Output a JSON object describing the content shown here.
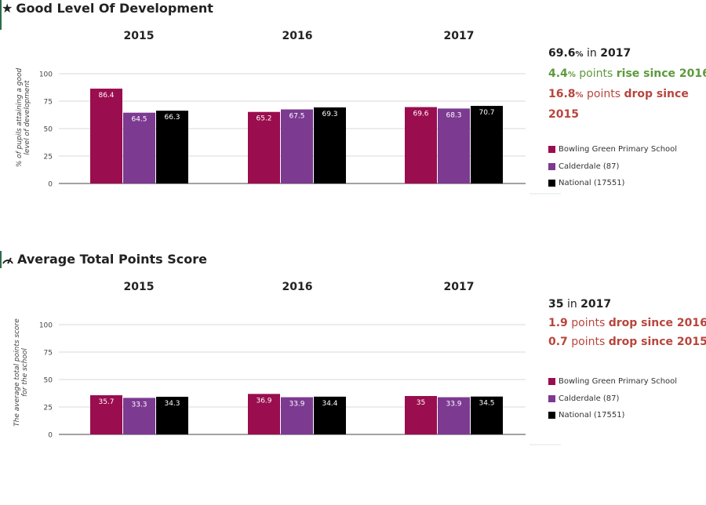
{
  "sections": [
    {
      "title": "Good Level Of Development",
      "icon": "star-icon",
      "chart_data": {
        "type": "bar",
        "categories": [
          "2015",
          "2016",
          "2017"
        ],
        "series": [
          {
            "name": "Bowling Green Primary School",
            "color": "#9a0d4e",
            "values": [
              86.4,
              65.2,
              69.6
            ]
          },
          {
            "name": "Calderdale (87)",
            "color": "#7c3a91",
            "values": [
              64.5,
              67.5,
              68.3
            ]
          },
          {
            "name": "National (17551)",
            "color": "#000000",
            "values": [
              66.3,
              69.3,
              70.7
            ]
          }
        ],
        "ylabel": "% of pupils attaining a good level of development",
        "ylim": [
          0,
          100
        ],
        "yticks": [
          0,
          25,
          50,
          75,
          100
        ],
        "legend_position": "right"
      },
      "summary": {
        "line1": {
          "value": "69.6",
          "unit": "%",
          "text": "in",
          "year": "2017"
        },
        "line2": {
          "value": "4.4",
          "unit": "%",
          "text": "points",
          "bold": "rise since 2016"
        },
        "line3": {
          "value": "16.8",
          "unit": "%",
          "text": "points",
          "bold": "drop since 2015"
        }
      }
    },
    {
      "title": "Average Total Points Score",
      "icon": "gauge-icon",
      "chart_data": {
        "type": "bar",
        "categories": [
          "2015",
          "2016",
          "2017"
        ],
        "series": [
          {
            "name": "Bowling Green Primary School",
            "color": "#9a0d4e",
            "values": [
              35.7,
              36.9,
              35
            ]
          },
          {
            "name": "Calderdale (87)",
            "color": "#7c3a91",
            "values": [
              33.3,
              33.9,
              33.9
            ]
          },
          {
            "name": "National (17551)",
            "color": "#000000",
            "values": [
              34.3,
              34.4,
              34.5
            ]
          }
        ],
        "ylabel": "The average total points score for the school",
        "ylim": [
          0,
          100
        ],
        "yticks": [
          0,
          25,
          50,
          75,
          100
        ],
        "legend_position": "right"
      },
      "summary": {
        "line1": {
          "value": "35",
          "unit": "",
          "text": "in",
          "year": "2017"
        },
        "line2": {
          "value": "1.9",
          "unit": "",
          "text": "points",
          "bold": "drop since 2016"
        },
        "line3": {
          "value": "0.7",
          "unit": "",
          "text": "points",
          "bold": "drop since 2015"
        }
      }
    }
  ]
}
